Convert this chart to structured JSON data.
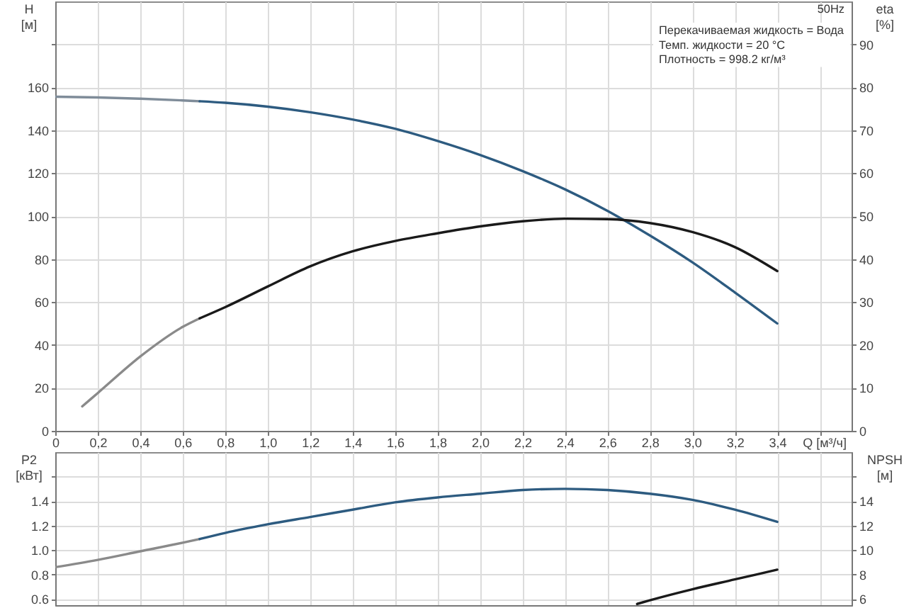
{
  "chart_data": [
    {
      "type": "line",
      "xlabel": "Q [м³/ч]",
      "ylabel": "H [м]",
      "y2label": "eta [%]",
      "xlim": [
        0,
        3.75
      ],
      "xticks": [
        {
          "value": 0,
          "label": "0"
        },
        {
          "value": 0.2,
          "label": "0,2"
        },
        {
          "value": 0.4,
          "label": "0,4"
        },
        {
          "value": 0.6,
          "label": "0,6"
        },
        {
          "value": 0.8,
          "label": "0,8"
        },
        {
          "value": 1.0,
          "label": "1,0"
        },
        {
          "value": 1.2,
          "label": "1,2"
        },
        {
          "value": 1.4,
          "label": "1,4"
        },
        {
          "value": 1.6,
          "label": "1,6"
        },
        {
          "value": 1.8,
          "label": "1,8"
        },
        {
          "value": 2.0,
          "label": "2,0"
        },
        {
          "value": 2.2,
          "label": "2,2"
        },
        {
          "value": 2.4,
          "label": "2,4"
        },
        {
          "value": 2.6,
          "label": "2,6"
        },
        {
          "value": 2.8,
          "label": "2,8"
        },
        {
          "value": 3.0,
          "label": "3,0"
        },
        {
          "value": 3.2,
          "label": "3,2"
        },
        {
          "value": 3.4,
          "label": "3,4"
        },
        {
          "value": 3.6,
          "label": null
        }
      ],
      "ylim": [
        0,
        200
      ],
      "yticks": [
        0,
        20,
        40,
        60,
        80,
        100,
        120,
        140,
        160,
        {
          "value": 180,
          "label": null
        }
      ],
      "y2lim": [
        0,
        100
      ],
      "y2ticks": [
        0,
        10,
        20,
        30,
        40,
        50,
        60,
        70,
        80,
        90
      ],
      "grid": true,
      "line_style": "solid",
      "annotations": [
        "50Hz",
        "Перекачиваемая жидкость = Вода",
        "Темп. жидкости = 20 °C",
        "Плотность = 998.2 кг/м³"
      ],
      "series": [
        {
          "color": "#7f8c99",
          "x": [
            0,
            0.2,
            0.4,
            0.6,
            0.68
          ],
          "values": [
            155.6,
            155.3,
            154.7,
            153.9,
            153.5
          ]
        },
        {
          "color": "#2d5b80",
          "x": [
            0.68,
            0.8,
            1.0,
            1.2,
            1.4,
            1.6,
            1.8,
            2.0,
            2.2,
            2.4,
            2.6,
            2.8,
            3.0,
            3.2,
            3.4
          ],
          "values": [
            153.5,
            152.8,
            151.0,
            148.4,
            145.0,
            140.7,
            135.0,
            128.5,
            121.0,
            112.5,
            102.5,
            91.0,
            78.5,
            64.5,
            50.0
          ]
        },
        {
          "color": "#8a8a8a",
          "axis": "y2",
          "x": [
            0.127,
            0.2,
            0.4,
            0.6,
            0.68
          ],
          "values": [
            5.7,
            8.8,
            17.3,
            24.2,
            26.2
          ]
        },
        {
          "color": "#1a1a1a",
          "axis": "y2",
          "x": [
            0.68,
            0.8,
            1.0,
            1.2,
            1.4,
            1.6,
            1.8,
            2.0,
            2.2,
            2.4,
            2.6,
            2.8,
            3.0,
            3.2,
            3.4
          ],
          "values": [
            26.2,
            28.8,
            33.6,
            38.3,
            41.8,
            44.2,
            46.0,
            47.6,
            48.8,
            49.4,
            49.3,
            48.4,
            46.3,
            42.8,
            37.2
          ]
        }
      ]
    },
    {
      "type": "line",
      "ylabel": "P2 [кВт]",
      "y2label": "NPSH [м]",
      "xlim": [
        0,
        3.75
      ],
      "xticks": [
        0,
        0.2,
        0.4,
        0.6,
        0.8,
        1.0,
        1.2,
        1.4,
        1.6,
        1.8,
        2.0,
        2.2,
        2.4,
        2.6,
        2.8,
        3.0,
        3.2,
        3.4,
        3.6
      ],
      "ylim": [
        0.55,
        1.8
      ],
      "yticks": [
        0.6,
        0.8,
        {
          "value": 1.0,
          "label": "1.0"
        },
        1.2,
        1.4,
        {
          "value": 1.6,
          "label": null
        }
      ],
      "y2lim": [
        5.5,
        18
      ],
      "y2ticks": [
        6,
        8,
        10,
        12,
        14,
        {
          "value": 16,
          "label": null
        }
      ],
      "grid": true,
      "line_style": "solid",
      "tick_labels": "y",
      "series": [
        {
          "color": "#8a8a8a",
          "x": [
            0,
            0.2,
            0.4,
            0.6,
            0.68
          ],
          "values": [
            0.86,
            0.92,
            0.99,
            1.06,
            1.09
          ]
        },
        {
          "color": "#2d5b80",
          "x": [
            0.68,
            0.8,
            1.0,
            1.2,
            1.4,
            1.6,
            1.8,
            2.0,
            2.2,
            2.4,
            2.6,
            2.8,
            3.0,
            3.2,
            3.4
          ],
          "values": [
            1.09,
            1.14,
            1.21,
            1.27,
            1.33,
            1.39,
            1.43,
            1.46,
            1.49,
            1.5,
            1.49,
            1.46,
            1.41,
            1.33,
            1.23
          ]
        },
        {
          "color": "#1a1a1a",
          "axis": "y2",
          "x": [
            2.74,
            2.8,
            3.0,
            3.2,
            3.4
          ],
          "values": [
            5.6,
            5.9,
            6.8,
            7.6,
            8.4
          ]
        }
      ]
    }
  ]
}
